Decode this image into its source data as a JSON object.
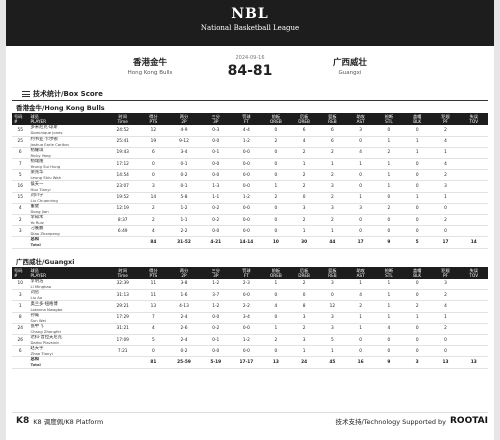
{
  "header": {
    "league": "NBL",
    "subtitle": "National Basketball League"
  },
  "game": {
    "date": "2024-09-16",
    "score": "84-81",
    "home": {
      "cn": "香港金牛",
      "en": "Hong Kong Bulls"
    },
    "away": {
      "cn": "广西威壮",
      "en": "Guangxi"
    }
  },
  "section_title": "技术统计/Box Score",
  "columns": [
    {
      "cn": "号码",
      "en": "#"
    },
    {
      "cn": "球员",
      "en": "PLAYER"
    },
    {
      "cn": "时间",
      "en": "Time"
    },
    {
      "cn": "得分",
      "en": "PTS"
    },
    {
      "cn": "两分",
      "en": "2P"
    },
    {
      "cn": "三分",
      "en": "3P"
    },
    {
      "cn": "罚球",
      "en": "FT"
    },
    {
      "cn": "前板",
      "en": "OREB"
    },
    {
      "cn": "后板",
      "en": "DREB"
    },
    {
      "cn": "篮板",
      "en": "REB"
    },
    {
      "cn": "助攻",
      "en": "AST"
    },
    {
      "cn": "抢断",
      "en": "STL"
    },
    {
      "cn": "盖帽",
      "en": "BLK"
    },
    {
      "cn": "犯规",
      "en": "PF"
    },
    {
      "cn": "失误",
      "en": "TOV"
    }
  ],
  "teams": [
    {
      "title": "香港金牛/Hong Kong Bulls",
      "players": [
        {
          "no": "55",
          "cn": "多米尼克·琼斯",
          "en": "Dominique Jones",
          "stats": [
            "24:52",
            "12",
            "4-9",
            "0-3",
            "4-4",
            "0",
            "6",
            "6",
            "3",
            "0",
            "0",
            "2",
            ""
          ]
        },
        {
          "no": "25",
          "cn": "约书亚·卡尔顿",
          "en": "Joshua Earle Carlton",
          "stats": [
            "25:41",
            "19",
            "9-12",
            "0-0",
            "1-2",
            "2",
            "4",
            "6",
            "0",
            "1",
            "1",
            "4",
            ""
          ]
        },
        {
          "no": "6",
          "cn": "杨耀琪",
          "en": "Ricky Yang",
          "stats": [
            "19:43",
            "6",
            "3-4",
            "0-1",
            "0-0",
            "0",
            "2",
            "2",
            "4",
            "2",
            "1",
            "1",
            ""
          ]
        },
        {
          "no": "7",
          "cn": "杨瑞隆",
          "en": "Yeung Sui Hung",
          "stats": [
            "17:12",
            "0",
            "0-1",
            "0-0",
            "0-0",
            "0",
            "1",
            "1",
            "1",
            "1",
            "0",
            "4",
            ""
          ]
        },
        {
          "no": "5",
          "cn": "梁兆华",
          "en": "Leung Shiu Wah",
          "stats": [
            "14:54",
            "0",
            "0-2",
            "0-0",
            "0-0",
            "0",
            "2",
            "2",
            "0",
            "1",
            "0",
            "2",
            ""
          ]
        },
        {
          "no": "16",
          "cn": "侯天一",
          "en": "Hou Tianyi",
          "stats": [
            "23:07",
            "3",
            "0-1",
            "1-3",
            "0-0",
            "1",
            "2",
            "3",
            "0",
            "1",
            "0",
            "3",
            ""
          ]
        },
        {
          "no": "15",
          "cn": "刘川宁",
          "en": "Liu Chuanning",
          "stats": [
            "19:52",
            "14",
            "5-8",
            "1-1",
            "1-2",
            "2",
            "0",
            "2",
            "1",
            "0",
            "1",
            "1",
            ""
          ]
        },
        {
          "no": "4",
          "cn": "董健",
          "en": "Dong Jian",
          "stats": [
            "12:19",
            "2",
            "1-2",
            "0-2",
            "0-0",
            "0",
            "3",
            "3",
            "3",
            "2",
            "0",
            "0",
            ""
          ]
        },
        {
          "no": "2",
          "cn": "李知禾",
          "en": "Yo Ruiz",
          "stats": [
            "8:37",
            "2",
            "1-1",
            "0-2",
            "0-0",
            "0",
            "2",
            "2",
            "0",
            "0",
            "0",
            "2",
            ""
          ]
        },
        {
          "no": "3",
          "cn": "刁展鹏",
          "en": "Diao Zhanpeng",
          "stats": [
            "6:49",
            "4",
            "2-2",
            "0-0",
            "0-0",
            "0",
            "1",
            "1",
            "0",
            "0",
            "0",
            "0",
            ""
          ]
        }
      ],
      "total": {
        "cn": "总和",
        "en": "Total",
        "stats": [
          "",
          "84",
          "31-52",
          "4-21",
          "14-14",
          "10",
          "30",
          "44",
          "17",
          "9",
          "5",
          "17",
          "14"
        ]
      }
    },
    {
      "title": "广西威壮/Guangxi",
      "players": [
        {
          "no": "10",
          "cn": "李明浩",
          "en": "Li Minghao",
          "stats": [
            "32:39",
            "11",
            "3-8",
            "1-2",
            "2-3",
            "1",
            "2",
            "3",
            "1",
            "1",
            "0",
            "3",
            ""
          ]
        },
        {
          "no": "3",
          "cn": "刘岳",
          "en": "Liu Ao",
          "stats": [
            "31:13",
            "11",
            "1-6",
            "3-7",
            "0-0",
            "0",
            "0",
            "0",
            "4",
            "1",
            "0",
            "2",
            ""
          ]
        },
        {
          "no": "1",
          "cn": "奥兰多·纽格博",
          "en": "Lotanna Nwogbo",
          "stats": [
            "29:21",
            "13",
            "4-13",
            "1-2",
            "2-2",
            "4",
            "8",
            "12",
            "2",
            "1",
            "2",
            "4",
            ""
          ]
        },
        {
          "no": "8",
          "cn": "孙威",
          "en": "Sun Wei",
          "stats": [
            "17:29",
            "7",
            "2-4",
            "0-0",
            "3-4",
            "0",
            "3",
            "3",
            "1",
            "1",
            "1",
            "1",
            ""
          ]
        },
        {
          "no": "24",
          "cn": "张中飞",
          "en": "Chang Zhongfei",
          "stats": [
            "31:21",
            "4",
            "2-6",
            "0-2",
            "0-0",
            "1",
            "2",
            "3",
            "1",
            "4",
            "0",
            "2",
            ""
          ]
        },
        {
          "no": "26",
          "cn": "达科·普拉夫尼克",
          "en": "Darko Plavsinic",
          "stats": [
            "17:09",
            "5",
            "2-4",
            "0-1",
            "1-2",
            "2",
            "3",
            "5",
            "0",
            "0",
            "0",
            "0",
            ""
          ]
        },
        {
          "no": "6",
          "cn": "赵天宇",
          "en": "Zhao Tianyi",
          "stats": [
            "7:21",
            "0",
            "0-2",
            "0-0",
            "0-0",
            "0",
            "1",
            "1",
            "0",
            "0",
            "0",
            "0",
            ""
          ]
        }
      ],
      "total": {
        "cn": "总和",
        "en": "Total",
        "stats": [
          "",
          "81",
          "25-59",
          "5-19",
          "17-17",
          "13",
          "24",
          "45",
          "16",
          "9",
          "3",
          "13",
          "13"
        ]
      }
    }
  ],
  "footer": {
    "left": "K8 调度佩/K8 Platform",
    "left_logo": "K8",
    "right": "技术支持/Technology Supported by",
    "right_brand": "ROOTAI"
  }
}
